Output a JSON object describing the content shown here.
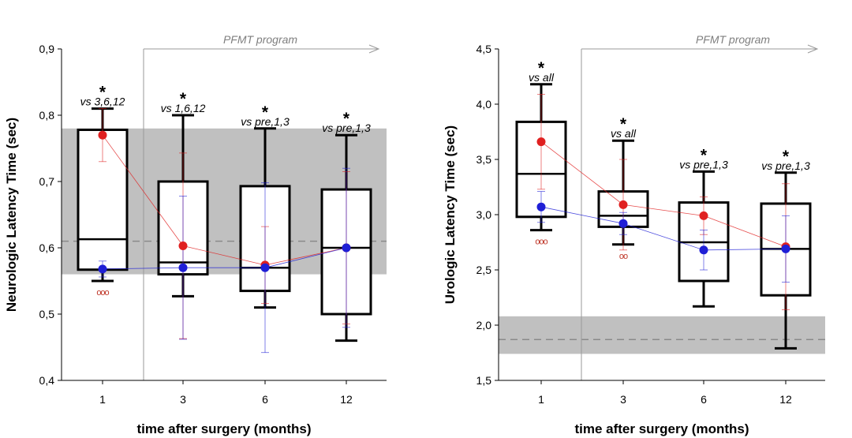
{
  "chart_data": [
    {
      "type": "box",
      "ylabel": "Neurologic Latency Time (sec)",
      "xlabel": "time after surgery (months)",
      "ylim": [
        0.4,
        0.9
      ],
      "yticks": [
        "0,4",
        "0,5",
        "0,6",
        "0,7",
        "0,8",
        "0,9"
      ],
      "categories": [
        "1",
        "3",
        "6",
        "12"
      ],
      "reference_band": [
        0.56,
        0.78
      ],
      "reference_line": 0.61,
      "program_label": "PFMT program",
      "boxes": [
        {
          "min": 0.55,
          "q1": 0.567,
          "median": 0.613,
          "q3": 0.778,
          "max": 0.81
        },
        {
          "min": 0.527,
          "q1": 0.56,
          "median": 0.578,
          "q3": 0.7,
          "max": 0.8
        },
        {
          "min": 0.51,
          "q1": 0.535,
          "median": 0.57,
          "q3": 0.693,
          "max": 0.78
        },
        {
          "min": 0.46,
          "q1": 0.5,
          "median": 0.6,
          "q3": 0.688,
          "max": 0.77
        }
      ],
      "series": [
        {
          "color": "#e02020",
          "values": [
            0.77,
            0.603,
            0.574,
            0.6
          ],
          "errors": [
            0.04,
            0.14,
            0.058,
            0.115
          ]
        },
        {
          "color": "#1f1fd6",
          "values": [
            0.568,
            0.57,
            0.57,
            0.6
          ],
          "errors": [
            0.012,
            0.108,
            0.128,
            0.12
          ]
        }
      ],
      "annotations": [
        {
          "star": "*",
          "text": "vs 3,6,12",
          "circles": "ooo"
        },
        {
          "star": "*",
          "text": "vs 1,6,12",
          "circles": ""
        },
        {
          "star": "*",
          "text": "vs pre,1,3",
          "circles": ""
        },
        {
          "star": "*",
          "text": "vs pre,1,3",
          "circles": ""
        }
      ]
    },
    {
      "type": "box",
      "ylabel": "Urologic Latency Time (sec)",
      "xlabel": "time after surgery (months)",
      "ylim": [
        1.5,
        4.5
      ],
      "yticks": [
        "1,5",
        "2,0",
        "2,5",
        "3,0",
        "3,5",
        "4,0",
        "4,5"
      ],
      "categories": [
        "1",
        "3",
        "6",
        "12"
      ],
      "reference_band": [
        1.74,
        2.08
      ],
      "reference_line": 1.87,
      "program_label": "PFMT program",
      "boxes": [
        {
          "min": 2.86,
          "q1": 2.98,
          "median": 3.37,
          "q3": 3.84,
          "max": 4.18
        },
        {
          "min": 2.73,
          "q1": 2.89,
          "median": 2.99,
          "q3": 3.21,
          "max": 3.67
        },
        {
          "min": 2.17,
          "q1": 2.4,
          "median": 2.75,
          "q3": 3.11,
          "max": 3.39
        },
        {
          "min": 1.79,
          "q1": 2.27,
          "median": 2.69,
          "q3": 3.1,
          "max": 3.38
        }
      ],
      "series": [
        {
          "color": "#e02020",
          "values": [
            3.66,
            3.09,
            2.99,
            2.71
          ],
          "errors": [
            0.43,
            0.41,
            0.17,
            0.57
          ]
        },
        {
          "color": "#1f1fd6",
          "values": [
            3.07,
            2.92,
            2.68,
            2.69
          ],
          "errors": [
            0.14,
            0.1,
            0.18,
            0.3
          ]
        }
      ],
      "annotations": [
        {
          "star": "*",
          "text": "vs all",
          "circles": "ooo"
        },
        {
          "star": "*",
          "text": "vs all",
          "circles": "oo"
        },
        {
          "star": "*",
          "text": "vs pre,1,3",
          "circles": ""
        },
        {
          "star": "*",
          "text": "vs pre,1,3",
          "circles": ""
        }
      ]
    }
  ]
}
